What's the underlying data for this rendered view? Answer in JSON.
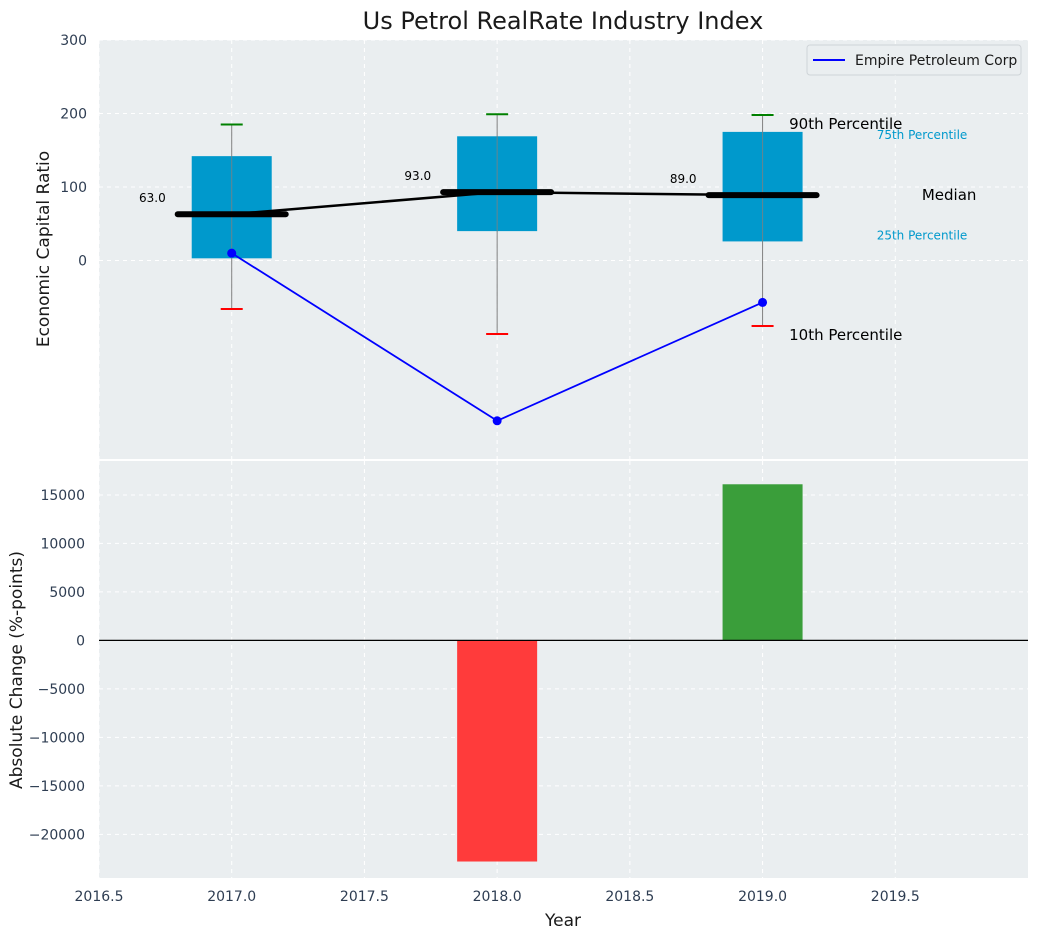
{
  "colors": {
    "plot_bg": "#eaeef0",
    "grid": "#ffffff",
    "box": "#0099cc",
    "median": "#000000",
    "whisker": "#808080",
    "cap_high": "#008000",
    "cap_low": "#ff0000",
    "company": "#0000ff",
    "bar_pos": "#3a9e3a",
    "bar_neg": "#ff3b3b",
    "legend_label_box": "#0099cc",
    "legend_label_text": "#000000"
  },
  "chart_data": [
    {
      "type": "box",
      "title": "Us Petrol RealRate Industry Index",
      "xlabel": "",
      "ylabel": "Economic Capital Ratio",
      "xlim": [
        2016.5,
        2020.0
      ],
      "ylim": [
        -270,
        300
      ],
      "yticks": [
        0,
        100,
        200,
        300
      ],
      "grid": true,
      "legend": {
        "position": "top-right",
        "entries": [
          "Empire Petroleum Corp"
        ]
      },
      "boxes": [
        {
          "x": 2017.0,
          "p10": -66,
          "q1": 3,
          "median": 63,
          "q3": 142,
          "p90": 185
        },
        {
          "x": 2018.0,
          "p10": -100,
          "q1": 40,
          "median": 93,
          "q3": 169,
          "p90": 199
        },
        {
          "x": 2019.0,
          "p10": -89,
          "q1": 26,
          "median": 89,
          "q3": 175,
          "p90": 198
        }
      ],
      "median_labels": [
        "63.0",
        "93.0",
        "89.0"
      ],
      "series": [
        {
          "name": "Empire Petroleum Corp",
          "x": [
            2017.0,
            2018.0,
            2019.0
          ],
          "y": [
            10,
            -218,
            -57
          ]
        }
      ],
      "percentile_labels": {
        "p90": "90th Percentile",
        "q3": "75th Percentile",
        "median": "Median",
        "q1": "25th Percentile",
        "p10": "10th Percentile"
      }
    },
    {
      "type": "bar",
      "xlabel": "Year",
      "ylabel": "Absolute Change (%-points)",
      "xlim": [
        2016.5,
        2020.0
      ],
      "ylim": [
        -24500,
        18500
      ],
      "xticks": [
        2016.5,
        2017.0,
        2017.5,
        2018.0,
        2018.5,
        2019.0,
        2019.5
      ],
      "xtick_labels": [
        "2016.5",
        "2017.0",
        "2017.5",
        "2018.0",
        "2018.5",
        "2019.0",
        "2019.5"
      ],
      "yticks": [
        -20000,
        -15000,
        -10000,
        -5000,
        0,
        5000,
        10000,
        15000
      ],
      "ytick_labels": [
        "−20000",
        "−15000",
        "−10000",
        "−5000",
        "0",
        "5000",
        "10000",
        "15000"
      ],
      "grid": true,
      "x": [
        2018.0,
        2019.0
      ],
      "values": [
        -22800,
        16100
      ]
    }
  ]
}
